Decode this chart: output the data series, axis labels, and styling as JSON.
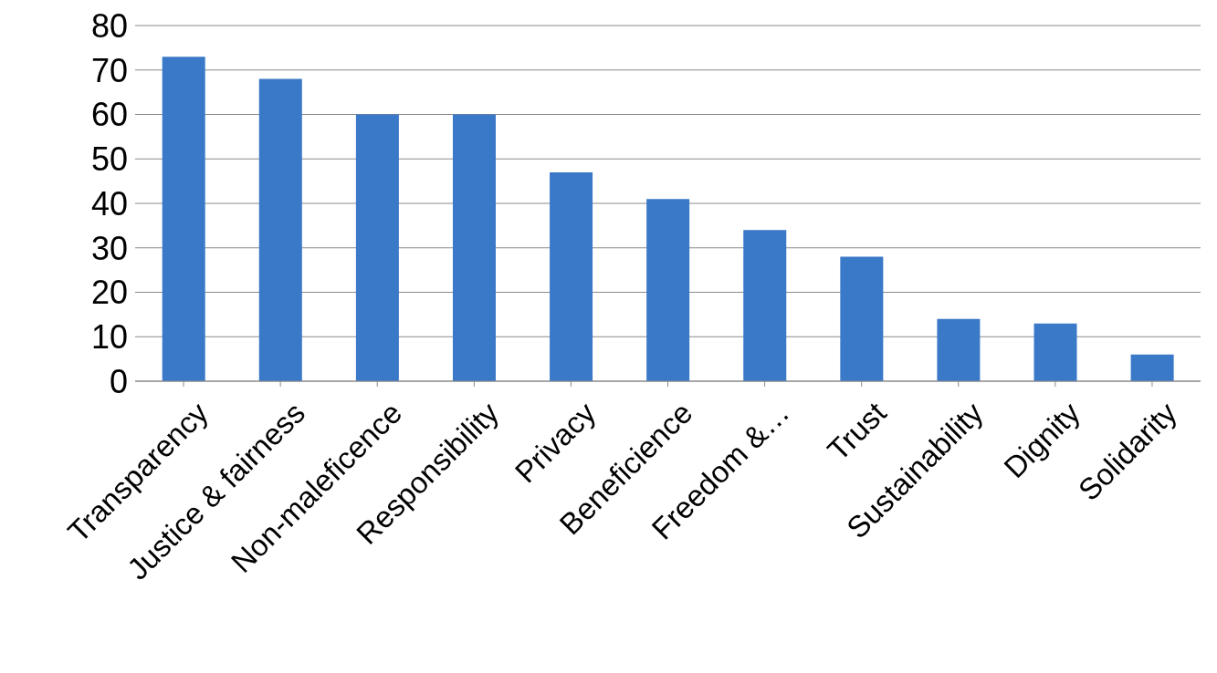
{
  "chart_data": {
    "type": "bar",
    "categories": [
      "Transparency",
      "Justice & fairness",
      "Non-maleficence",
      "Responsibility",
      "Privacy",
      "Beneficience",
      "Freedom &…",
      "Trust",
      "Sustainability",
      "Dignity",
      "Solidarity"
    ],
    "values": [
      73,
      68,
      60,
      60,
      47,
      41,
      34,
      28,
      14,
      13,
      6
    ],
    "color": "#3a78c8",
    "ylim": [
      0,
      80
    ],
    "yticks": [
      0,
      10,
      20,
      30,
      40,
      50,
      60,
      70,
      80
    ],
    "grid": "y"
  }
}
